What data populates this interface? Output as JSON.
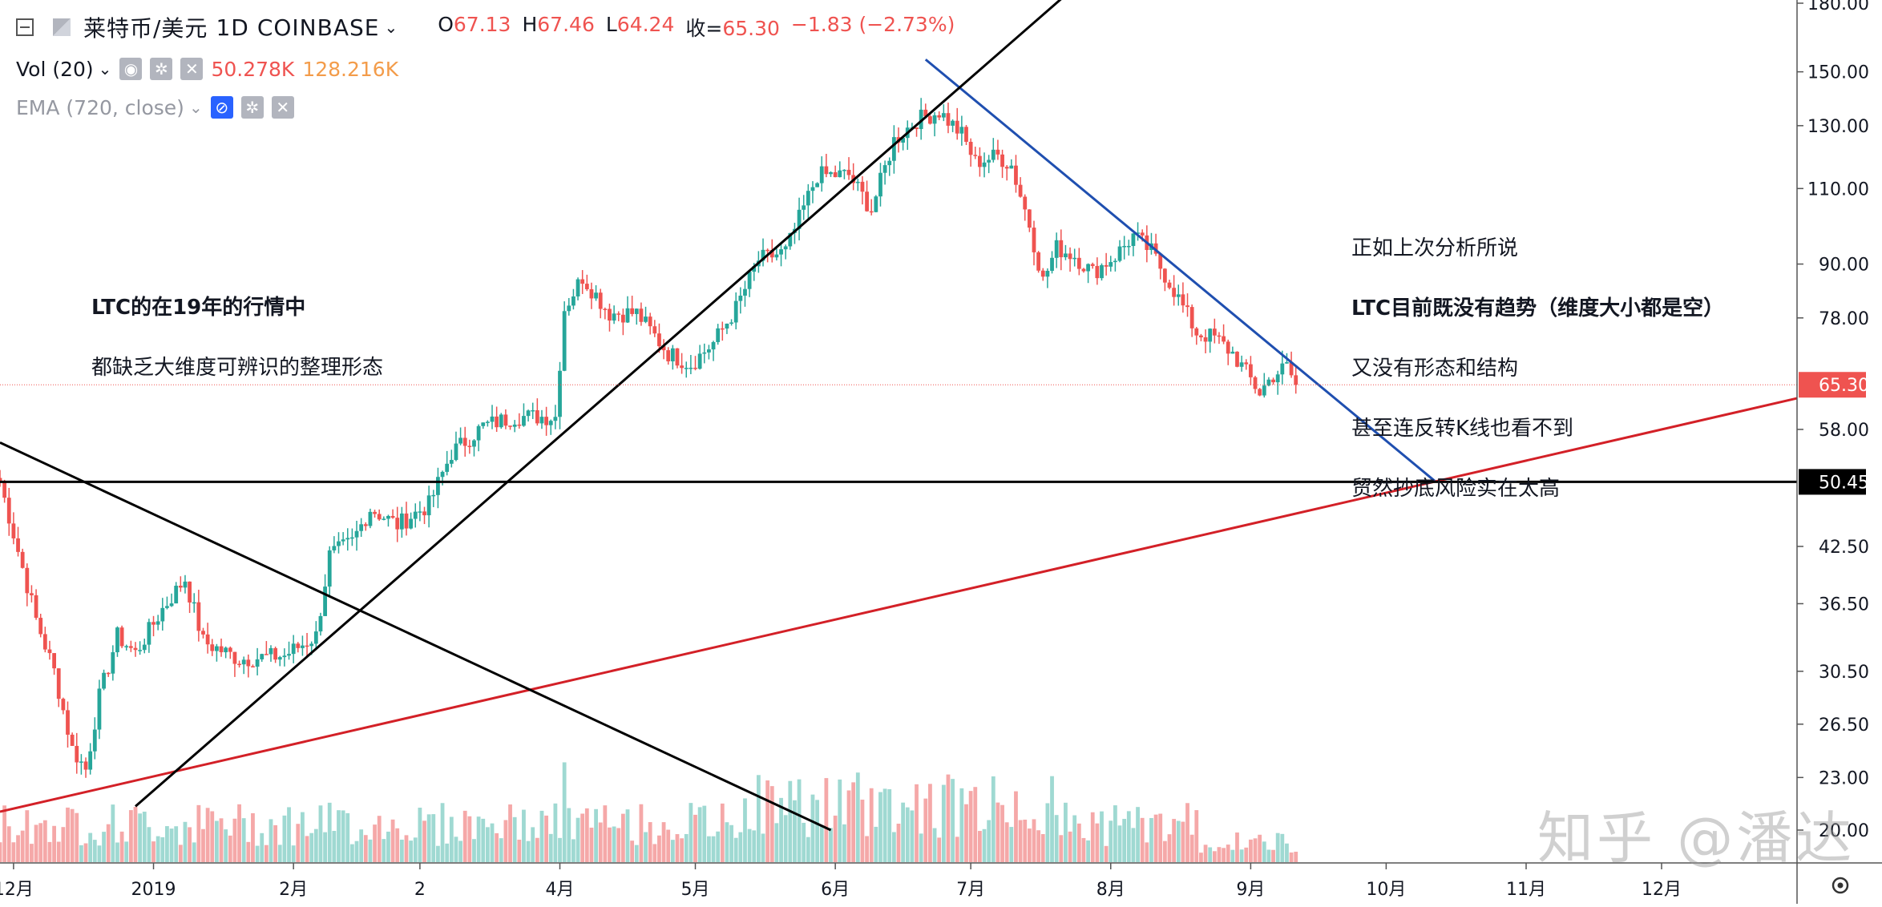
{
  "header": {
    "symbol_title": "莱特币/美元",
    "interval": "1D",
    "exchange": "COINBASE",
    "ohlc": {
      "o_label": "O",
      "o": "67.13",
      "h_label": "H",
      "h": "67.46",
      "l_label": "L",
      "l": "64.24",
      "c_label": "收=",
      "c": "65.30",
      "change": "−1.83 (−2.73%)"
    }
  },
  "indicators": {
    "volume": {
      "name": "Vol (20)",
      "value1": "50.278K",
      "value2": "128.216K"
    },
    "ema": {
      "name": "EMA (720, close)"
    }
  },
  "annotations": {
    "left": [
      "LTC的在19年的行情中",
      "都缺乏大维度可辨识的整理形态"
    ],
    "right": [
      "正如上次分析所说",
      "LTC目前既没有趋势（维度大小都是空）",
      "又没有形态和结构",
      "甚至连反转K线也看不到",
      "贸然抄底风险实在太高"
    ]
  },
  "watermark": "知乎 @潘达",
  "colors": {
    "up": "#26a69a",
    "down": "#ef5350",
    "vol_up": "#9fd9d2",
    "vol_down": "#f5a8a8",
    "trend_blue": "#1f4fb0",
    "trend_red": "#d32027",
    "trend_black": "#000000",
    "last_price_bg": "#ef5350",
    "level_bg": "#000000"
  },
  "chart_data": {
    "type": "candlestick",
    "y_scale": "log",
    "price_axis_ticks": [
      "180.00",
      "150.00",
      "130.00",
      "110.00",
      "90.00",
      "78.00",
      "58.00",
      "42.50",
      "36.50",
      "30.50",
      "26.50",
      "23.00",
      "20.00"
    ],
    "x_axis_ticks": [
      "12月",
      "2019",
      "2月",
      "2",
      "4月",
      "5月",
      "6月",
      "7月",
      "8月",
      "9月",
      "10月",
      "11月",
      "12月"
    ],
    "last_price": "65.30",
    "horizontal_level": "50.45",
    "price_path": [
      [
        "2018-11-28",
        50.5
      ],
      [
        "2018-12-02",
        42.0
      ],
      [
        "2018-12-06",
        35.0
      ],
      [
        "2018-12-10",
        30.5
      ],
      [
        "2018-12-14",
        24.8
      ],
      [
        "2018-12-17",
        23.5
      ],
      [
        "2018-12-20",
        28.5
      ],
      [
        "2018-12-24",
        33.5
      ],
      [
        "2018-12-28",
        32.0
      ],
      [
        "2019-01-03",
        36.0
      ],
      [
        "2019-01-08",
        39.0
      ],
      [
        "2019-01-12",
        33.0
      ],
      [
        "2019-01-20",
        31.5
      ],
      [
        "2019-01-30",
        31.8
      ],
      [
        "2019-02-06",
        33.5
      ],
      [
        "2019-02-09",
        41.5
      ],
      [
        "2019-02-14",
        43.0
      ],
      [
        "2019-02-18",
        47.0
      ],
      [
        "2019-02-24",
        45.0
      ],
      [
        "2019-03-03",
        47.5
      ],
      [
        "2019-03-08",
        54.5
      ],
      [
        "2019-03-15",
        58.5
      ],
      [
        "2019-03-22",
        60.0
      ],
      [
        "2019-03-31",
        60.0
      ],
      [
        "2019-04-02",
        80.0
      ],
      [
        "2019-04-06",
        87.0
      ],
      [
        "2019-04-12",
        79.0
      ],
      [
        "2019-04-18",
        79.0
      ],
      [
        "2019-04-25",
        71.0
      ],
      [
        "2019-04-30",
        69.0
      ],
      [
        "2019-05-05",
        73.0
      ],
      [
        "2019-05-10",
        80.0
      ],
      [
        "2019-05-15",
        91.0
      ],
      [
        "2019-05-21",
        93.0
      ],
      [
        "2019-05-28",
        114.0
      ],
      [
        "2019-06-04",
        114.0
      ],
      [
        "2019-06-09",
        104.0
      ],
      [
        "2019-06-14",
        125.0
      ],
      [
        "2019-06-19",
        132.0
      ],
      [
        "2019-06-24",
        135.0
      ],
      [
        "2019-06-29",
        127.0
      ],
      [
        "2019-07-02",
        118.0
      ],
      [
        "2019-07-07",
        120.0
      ],
      [
        "2019-07-10",
        117.0
      ],
      [
        "2019-07-14",
        100.0
      ],
      [
        "2019-07-17",
        86.0
      ],
      [
        "2019-07-20",
        94.0
      ],
      [
        "2019-07-24",
        92.0
      ],
      [
        "2019-07-28",
        88.0
      ],
      [
        "2019-08-02",
        92.0
      ],
      [
        "2019-08-06",
        97.0
      ],
      [
        "2019-08-10",
        93.0
      ],
      [
        "2019-08-15",
        84.0
      ],
      [
        "2019-08-20",
        75.0
      ],
      [
        "2019-08-24",
        74.0
      ],
      [
        "2019-08-28",
        71.0
      ],
      [
        "2019-09-03",
        64.0
      ],
      [
        "2019-09-06",
        67.0
      ],
      [
        "2019-09-09",
        68.5
      ],
      [
        "2019-09-11",
        65.3
      ]
    ],
    "trendlines": [
      {
        "color": "trend_blue",
        "from": [
          "2019-06-21",
          155.0
        ],
        "to": [
          "2019-10-12",
          50.45
        ]
      },
      {
        "color": "trend_red",
        "from": [
          "2018-11-28",
          21.0
        ],
        "to": [
          "2019-12-31",
          63.0
        ]
      },
      {
        "color": "trend_black",
        "from": [
          "2018-12-28",
          21.3
        ],
        "to": [
          "2019-07-30",
          200.0
        ]
      },
      {
        "color": "trend_black",
        "from": [
          "2018-11-28",
          56.0
        ],
        "to": [
          "2019-05-31",
          20.0
        ]
      }
    ]
  }
}
